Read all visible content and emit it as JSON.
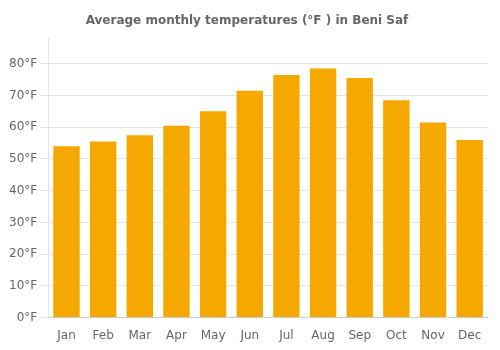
{
  "chart_data": {
    "type": "bar",
    "title": "Average monthly temperatures (°F ) in Beni Saf",
    "categories": [
      "Jan",
      "Feb",
      "Mar",
      "Apr",
      "May",
      "Jun",
      "Jul",
      "Aug",
      "Sep",
      "Oct",
      "Nov",
      "Dec"
    ],
    "values": [
      54,
      55.5,
      57.5,
      60.5,
      65,
      71.5,
      76.5,
      78.5,
      75.5,
      68.5,
      61.5,
      56
    ],
    "color": "#F5A800",
    "ylim": [
      0,
      88
    ],
    "yticks": [
      {
        "value": 0,
        "label": "0°F"
      },
      {
        "value": 10,
        "label": "10°F"
      },
      {
        "value": 20,
        "label": "20°F"
      },
      {
        "value": 30,
        "label": "30°F"
      },
      {
        "value": 40,
        "label": "40°F"
      },
      {
        "value": 50,
        "label": "50°F"
      },
      {
        "value": 60,
        "label": "60°F"
      },
      {
        "value": 70,
        "label": "70°F"
      },
      {
        "value": 80,
        "label": "80°F"
      }
    ],
    "grid": true
  }
}
